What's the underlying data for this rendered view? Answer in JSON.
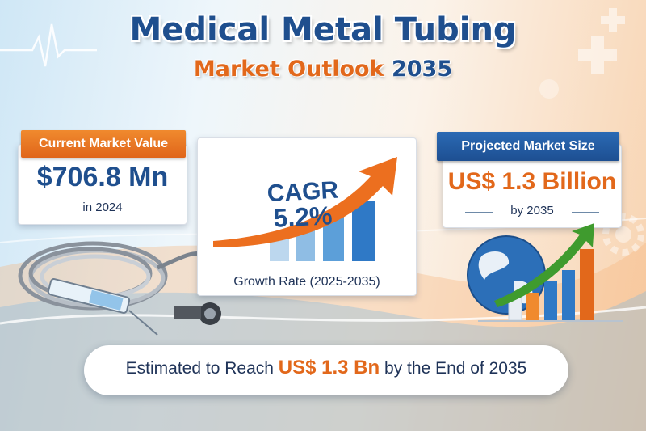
{
  "header": {
    "title": "Medical Metal Tubing",
    "subtitle_part1": "Market Outlook",
    "subtitle_part2": "2035"
  },
  "current_market": {
    "label": "Current Market Value",
    "value": "$706.8 Mn",
    "year": "in 2024"
  },
  "growth": {
    "cagr_label": "CAGR",
    "cagr_value": "5.2%",
    "period_label": "Growth Rate (2025-2035)"
  },
  "projected_market": {
    "label": "Projected Market Size",
    "value": "US$ 1.3 Billion",
    "year": "by 2035"
  },
  "footer": {
    "text_before": "Estimated to Reach",
    "highlight": "US$ 1.3 Bn",
    "text_after": "by the End of 2035"
  },
  "colors": {
    "accent_orange": "#e2681b",
    "brand_blue": "#1f4f8e",
    "growth_green": "#3f9b2e"
  },
  "icons": [
    "heartbeat-icon",
    "medical-cross-icon",
    "gear-icon",
    "metal-tubing-illustration",
    "syringe-illustration",
    "globe-icon",
    "growth-arrow-icon",
    "bar-chart-icon"
  ]
}
